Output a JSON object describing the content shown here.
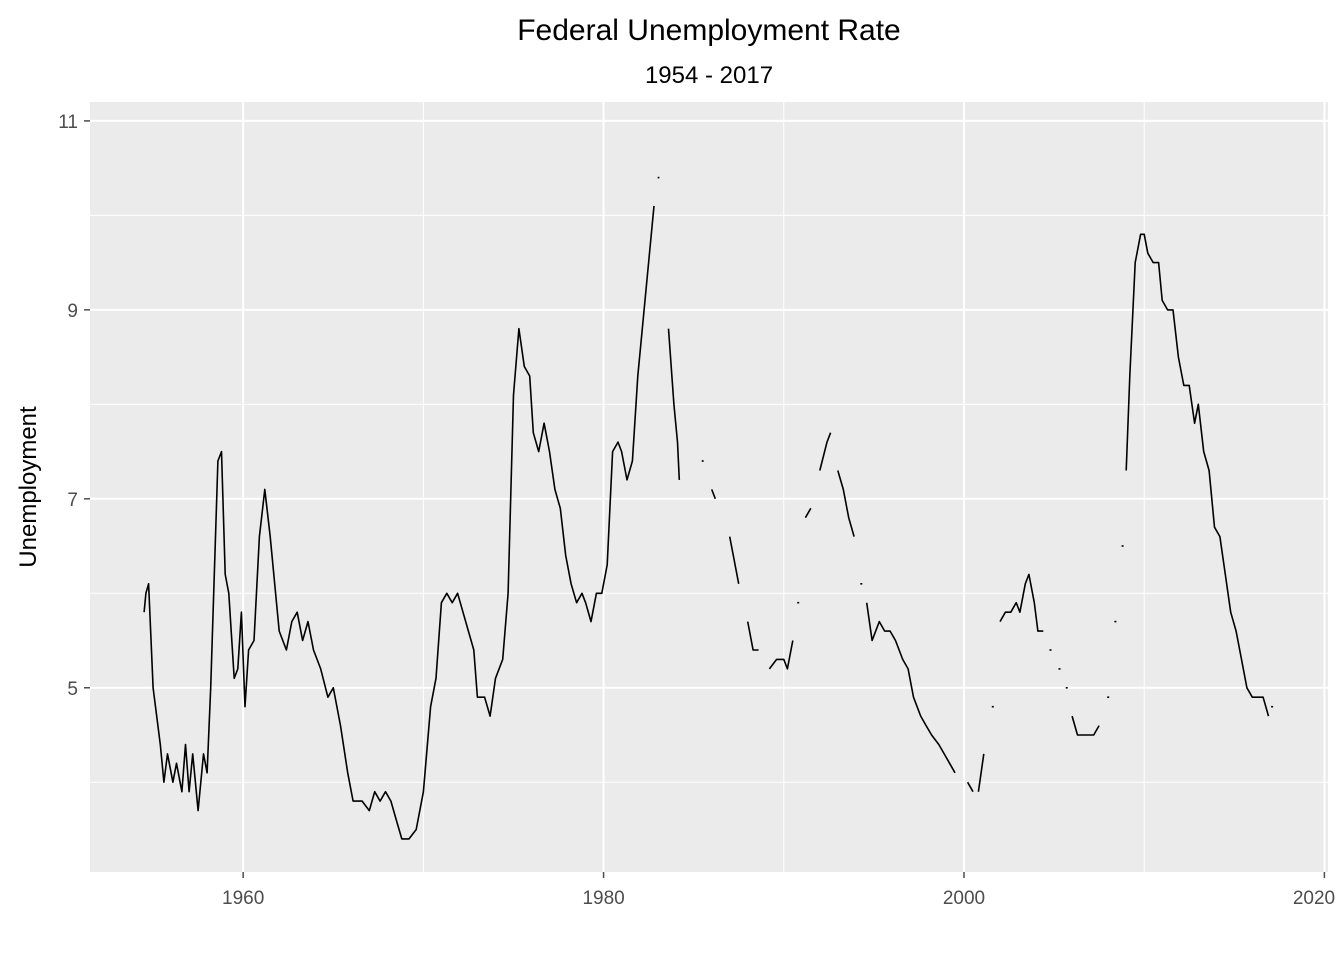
{
  "chart_data": {
    "type": "line",
    "title": "Federal Unemployment Rate",
    "subtitle": "1954 - 2017",
    "xlabel": "",
    "ylabel": "Unemployment",
    "xlim": [
      1951.5,
      2020.2
    ],
    "ylim": [
      3.05,
      11.2
    ],
    "x_ticks": [
      1960,
      1980,
      2000,
      2020
    ],
    "x_minor": [
      1950,
      1970,
      1990,
      2010
    ],
    "y_ticks": [
      5,
      7,
      9,
      11
    ],
    "y_minor": [
      4,
      6,
      8,
      10
    ],
    "grid": true,
    "legend": "none",
    "colors": {
      "panel": "#ebebeb",
      "grid": "#ffffff",
      "line": "#000000",
      "tick": "#4d4d4d"
    },
    "series": [
      {
        "segments": [
          [
            [
              1954.5,
              5.8
            ],
            [
              1954.6,
              6.0
            ],
            [
              1954.75,
              6.1
            ],
            [
              1955.0,
              5.0
            ],
            [
              1955.4,
              4.4
            ],
            [
              1955.6,
              4.0
            ],
            [
              1955.8,
              4.3
            ],
            [
              1956.1,
              4.0
            ],
            [
              1956.3,
              4.2
            ],
            [
              1956.6,
              3.9
            ],
            [
              1956.8,
              4.4
            ],
            [
              1957.0,
              3.9
            ],
            [
              1957.2,
              4.3
            ],
            [
              1957.5,
              3.7
            ],
            [
              1957.8,
              4.3
            ],
            [
              1958.0,
              4.1
            ],
            [
              1958.2,
              5.0
            ],
            [
              1958.6,
              7.4
            ],
            [
              1958.8,
              7.5
            ],
            [
              1959.0,
              6.2
            ],
            [
              1959.2,
              6.0
            ],
            [
              1959.5,
              5.1
            ],
            [
              1959.7,
              5.2
            ],
            [
              1959.9,
              5.8
            ],
            [
              1960.1,
              4.8
            ],
            [
              1960.3,
              5.4
            ],
            [
              1960.6,
              5.5
            ],
            [
              1960.9,
              6.6
            ],
            [
              1961.2,
              7.1
            ],
            [
              1961.5,
              6.6
            ],
            [
              1961.8,
              6.0
            ],
            [
              1962.0,
              5.6
            ],
            [
              1962.4,
              5.4
            ],
            [
              1962.7,
              5.7
            ],
            [
              1963.0,
              5.8
            ],
            [
              1963.3,
              5.5
            ],
            [
              1963.6,
              5.7
            ],
            [
              1963.9,
              5.4
            ],
            [
              1964.3,
              5.2
            ],
            [
              1964.7,
              4.9
            ],
            [
              1965.0,
              5.0
            ],
            [
              1965.4,
              4.6
            ],
            [
              1965.8,
              4.1
            ],
            [
              1966.1,
              3.8
            ],
            [
              1966.6,
              3.8
            ],
            [
              1967.0,
              3.7
            ],
            [
              1967.3,
              3.9
            ],
            [
              1967.6,
              3.8
            ],
            [
              1967.9,
              3.9
            ],
            [
              1968.2,
              3.8
            ],
            [
              1968.5,
              3.6
            ],
            [
              1968.8,
              3.4
            ],
            [
              1969.2,
              3.4
            ],
            [
              1969.6,
              3.5
            ],
            [
              1970.0,
              3.9
            ],
            [
              1970.4,
              4.8
            ],
            [
              1970.7,
              5.1
            ],
            [
              1971.0,
              5.9
            ],
            [
              1971.3,
              6.0
            ],
            [
              1971.6,
              5.9
            ],
            [
              1971.9,
              6.0
            ],
            [
              1972.2,
              5.8
            ],
            [
              1972.5,
              5.6
            ],
            [
              1972.8,
              5.4
            ],
            [
              1973.0,
              4.9
            ],
            [
              1973.4,
              4.9
            ],
            [
              1973.7,
              4.7
            ],
            [
              1974.0,
              5.1
            ],
            [
              1974.4,
              5.3
            ],
            [
              1974.7,
              6.0
            ],
            [
              1975.0,
              8.1
            ],
            [
              1975.3,
              8.8
            ],
            [
              1975.6,
              8.4
            ],
            [
              1975.9,
              8.3
            ],
            [
              1976.1,
              7.7
            ],
            [
              1976.4,
              7.5
            ],
            [
              1976.7,
              7.8
            ],
            [
              1977.0,
              7.5
            ],
            [
              1977.3,
              7.1
            ],
            [
              1977.6,
              6.9
            ],
            [
              1977.9,
              6.4
            ],
            [
              1978.2,
              6.1
            ],
            [
              1978.5,
              5.9
            ],
            [
              1978.8,
              6.0
            ],
            [
              1979.0,
              5.9
            ],
            [
              1979.3,
              5.7
            ],
            [
              1979.6,
              6.0
            ],
            [
              1979.9,
              6.0
            ],
            [
              1980.2,
              6.3
            ],
            [
              1980.5,
              7.5
            ],
            [
              1980.8,
              7.6
            ],
            [
              1981.0,
              7.5
            ],
            [
              1981.3,
              7.2
            ],
            [
              1981.6,
              7.4
            ],
            [
              1981.9,
              8.3
            ],
            [
              1982.2,
              8.9
            ],
            [
              1982.5,
              9.5
            ],
            [
              1982.8,
              10.1
            ]
          ],
          [
            [
              1983.0,
              10.4
            ],
            [
              1983.1,
              10.4
            ]
          ],
          [
            [
              1983.6,
              8.8
            ],
            [
              1983.9,
              8.0
            ],
            [
              1984.1,
              7.6
            ],
            [
              1984.2,
              7.2
            ]
          ],
          [
            [
              1985.5,
              7.4
            ]
          ],
          [
            [
              1986.0,
              7.1
            ],
            [
              1986.2,
              7.0
            ]
          ],
          [
            [
              1987.0,
              6.6
            ],
            [
              1987.2,
              6.4
            ],
            [
              1987.5,
              6.1
            ]
          ],
          [
            [
              1988.0,
              5.7
            ],
            [
              1988.3,
              5.4
            ],
            [
              1988.6,
              5.4
            ]
          ],
          [
            [
              1989.2,
              5.2
            ],
            [
              1989.6,
              5.3
            ],
            [
              1990.0,
              5.3
            ],
            [
              1990.2,
              5.2
            ],
            [
              1990.5,
              5.5
            ]
          ],
          [
            [
              1990.8,
              5.9
            ]
          ],
          [
            [
              1991.2,
              6.8
            ],
            [
              1991.5,
              6.9
            ]
          ],
          [
            [
              1992.0,
              7.3
            ],
            [
              1992.4,
              7.6
            ],
            [
              1992.6,
              7.7
            ]
          ],
          [
            [
              1993.0,
              7.3
            ],
            [
              1993.3,
              7.1
            ],
            [
              1993.6,
              6.8
            ],
            [
              1993.9,
              6.6
            ]
          ],
          [
            [
              1994.3,
              6.1
            ]
          ],
          [
            [
              1994.6,
              5.9
            ],
            [
              1994.9,
              5.5
            ],
            [
              1995.3,
              5.7
            ],
            [
              1995.6,
              5.6
            ],
            [
              1995.9,
              5.6
            ],
            [
              1996.2,
              5.5
            ],
            [
              1996.6,
              5.3
            ],
            [
              1996.9,
              5.2
            ],
            [
              1997.2,
              4.9
            ],
            [
              1997.6,
              4.7
            ],
            [
              1997.9,
              4.6
            ],
            [
              1998.2,
              4.5
            ],
            [
              1998.6,
              4.4
            ],
            [
              1998.9,
              4.3
            ],
            [
              1999.2,
              4.2
            ],
            [
              1999.5,
              4.1
            ]
          ],
          [
            [
              2000.2,
              4.0
            ],
            [
              2000.5,
              3.9
            ]
          ],
          [
            [
              2000.8,
              3.9
            ],
            [
              2001.1,
              4.3
            ]
          ],
          [
            [
              2001.6,
              4.8
            ]
          ],
          [
            [
              2002.0,
              5.7
            ],
            [
              2002.3,
              5.8
            ],
            [
              2002.6,
              5.8
            ],
            [
              2002.9,
              5.9
            ],
            [
              2003.1,
              5.8
            ],
            [
              2003.4,
              6.1
            ],
            [
              2003.6,
              6.2
            ],
            [
              2003.9,
              5.9
            ],
            [
              2004.1,
              5.6
            ],
            [
              2004.4,
              5.6
            ]
          ],
          [
            [
              2004.8,
              5.4
            ]
          ],
          [
            [
              2005.3,
              5.2
            ]
          ],
          [
            [
              2005.7,
              5.0
            ]
          ],
          [
            [
              2006.0,
              4.7
            ],
            [
              2006.3,
              4.5
            ],
            [
              2006.6,
              4.5
            ],
            [
              2006.9,
              4.5
            ],
            [
              2007.2,
              4.5
            ],
            [
              2007.5,
              4.6
            ]
          ],
          [
            [
              2008.0,
              4.9
            ]
          ],
          [
            [
              2008.4,
              5.7
            ]
          ],
          [
            [
              2008.8,
              6.5
            ]
          ],
          [
            [
              2009.0,
              7.3
            ],
            [
              2009.2,
              8.3
            ],
            [
              2009.5,
              9.5
            ],
            [
              2009.8,
              9.8
            ],
            [
              2010.0,
              9.8
            ],
            [
              2010.2,
              9.6
            ],
            [
              2010.5,
              9.5
            ],
            [
              2010.8,
              9.5
            ],
            [
              2011.0,
              9.1
            ],
            [
              2011.3,
              9.0
            ],
            [
              2011.6,
              9.0
            ],
            [
              2011.9,
              8.5
            ],
            [
              2012.2,
              8.2
            ],
            [
              2012.5,
              8.2
            ],
            [
              2012.8,
              7.8
            ],
            [
              2013.0,
              8.0
            ],
            [
              2013.3,
              7.5
            ],
            [
              2013.6,
              7.3
            ],
            [
              2013.9,
              6.7
            ],
            [
              2014.2,
              6.6
            ],
            [
              2014.5,
              6.2
            ],
            [
              2014.8,
              5.8
            ],
            [
              2015.1,
              5.6
            ],
            [
              2015.4,
              5.3
            ],
            [
              2015.7,
              5.0
            ],
            [
              2016.0,
              4.9
            ],
            [
              2016.3,
              4.9
            ],
            [
              2016.6,
              4.9
            ],
            [
              2016.9,
              4.7
            ]
          ],
          [
            [
              2017.1,
              4.8
            ]
          ]
        ]
      }
    ]
  }
}
